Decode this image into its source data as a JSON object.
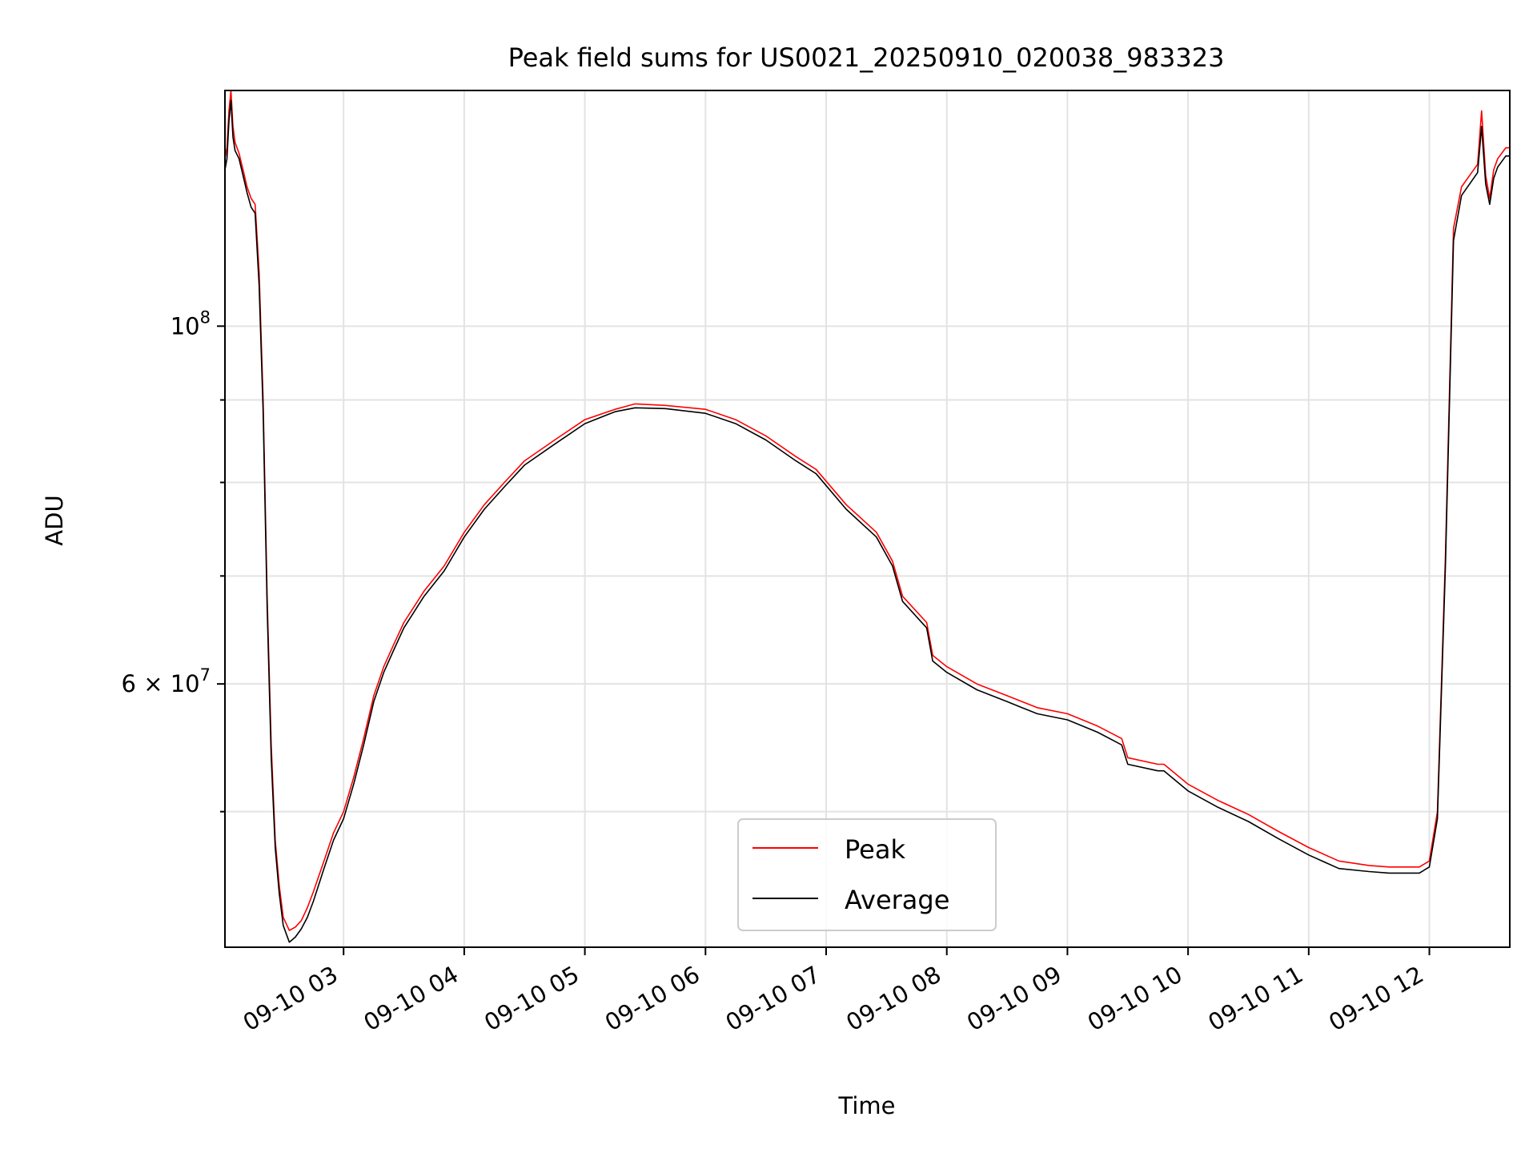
{
  "chart_data": {
    "type": "line",
    "title": "Peak field sums for US0021_20250910_020038_983323",
    "xlabel": "Time",
    "ylabel": "ADU",
    "yscale": "log",
    "grid": true,
    "legend_position": "lower center",
    "ylim": [
      41200000,
      140000000
    ],
    "xlim": [
      "2025-09-10T02:01:00",
      "2025-09-10T12:40:00"
    ],
    "x_tick_labels": [
      "09-10 03",
      "09-10 04",
      "09-10 05",
      "09-10 06",
      "09-10 07",
      "09-10 08",
      "09-10 09",
      "09-10 10",
      "09-10 11",
      "09-10 12"
    ],
    "x_tick_values": [
      "2025-09-10T03:00:00",
      "2025-09-10T04:00:00",
      "2025-09-10T05:00:00",
      "2025-09-10T06:00:00",
      "2025-09-10T07:00:00",
      "2025-09-10T08:00:00",
      "2025-09-10T09:00:00",
      "2025-09-10T10:00:00",
      "2025-09-10T11:00:00",
      "2025-09-10T12:00:00"
    ],
    "y_tick_labels": [
      {
        "mantissa": "",
        "base": "10",
        "exp": "8",
        "value": 100000000
      },
      {
        "mantissa": "6 × ",
        "base": "10",
        "exp": "7",
        "value": 60000000
      }
    ],
    "y_minor_ticks": [
      50000000,
      70000000,
      80000000,
      90000000
    ],
    "series": [
      {
        "name": "Peak",
        "color": "#ff0000",
        "x": [
          "2025-09-10T02:01:00",
          "2025-09-10T02:02:00",
          "2025-09-10T02:03:00",
          "2025-09-10T02:04:00",
          "2025-09-10T02:05:00",
          "2025-09-10T02:06:00",
          "2025-09-10T02:08:00",
          "2025-09-10T02:10:00",
          "2025-09-10T02:12:00",
          "2025-09-10T02:14:00",
          "2025-09-10T02:16:00",
          "2025-09-10T02:18:00",
          "2025-09-10T02:20:00",
          "2025-09-10T02:22:00",
          "2025-09-10T02:24:00",
          "2025-09-10T02:26:00",
          "2025-09-10T02:28:00",
          "2025-09-10T02:30:00",
          "2025-09-10T02:33:00",
          "2025-09-10T02:36:00",
          "2025-09-10T02:39:00",
          "2025-09-10T02:42:00",
          "2025-09-10T02:45:00",
          "2025-09-10T02:50:00",
          "2025-09-10T02:55:00",
          "2025-09-10T03:00:00",
          "2025-09-10T03:05:00",
          "2025-09-10T03:10:00",
          "2025-09-10T03:15:00",
          "2025-09-10T03:20:00",
          "2025-09-10T03:25:00",
          "2025-09-10T03:30:00",
          "2025-09-10T03:40:00",
          "2025-09-10T03:50:00",
          "2025-09-10T04:00:00",
          "2025-09-10T04:10:00",
          "2025-09-10T04:20:00",
          "2025-09-10T04:30:00",
          "2025-09-10T04:45:00",
          "2025-09-10T05:00:00",
          "2025-09-10T05:15:00",
          "2025-09-10T05:25:00",
          "2025-09-10T05:40:00",
          "2025-09-10T06:00:00",
          "2025-09-10T06:15:00",
          "2025-09-10T06:30:00",
          "2025-09-10T06:45:00",
          "2025-09-10T06:55:00",
          "2025-09-10T07:10:00",
          "2025-09-10T07:25:00",
          "2025-09-10T07:33:00",
          "2025-09-10T07:38:00",
          "2025-09-10T07:50:00",
          "2025-09-10T07:53:00",
          "2025-09-10T08:00:00",
          "2025-09-10T08:15:00",
          "2025-09-10T08:30:00",
          "2025-09-10T08:45:00",
          "2025-09-10T09:00:00",
          "2025-09-10T09:15:00",
          "2025-09-10T09:27:00",
          "2025-09-10T09:30:00",
          "2025-09-10T09:45:00",
          "2025-09-10T09:48:00",
          "2025-09-10T10:00:00",
          "2025-09-10T10:15:00",
          "2025-09-10T10:30:00",
          "2025-09-10T10:45:00",
          "2025-09-10T11:00:00",
          "2025-09-10T11:15:00",
          "2025-09-10T11:30:00",
          "2025-09-10T11:40:00",
          "2025-09-10T11:55:00",
          "2025-09-10T12:00:00",
          "2025-09-10T12:04:00",
          "2025-09-10T12:08:00",
          "2025-09-10T12:12:00",
          "2025-09-10T12:16:00",
          "2025-09-10T12:20:00",
          "2025-09-10T12:24:00",
          "2025-09-10T12:26:00",
          "2025-09-10T12:28:00",
          "2025-09-10T12:30:00",
          "2025-09-10T12:32:00",
          "2025-09-10T12:34:00",
          "2025-09-10T12:36:00",
          "2025-09-10T12:38:00",
          "2025-09-10T12:40:00"
        ],
        "y": [
          127000000,
          129000000,
          136000000,
          140000000,
          133000000,
          130000000,
          128000000,
          125000000,
          122000000,
          120000000,
          119000000,
          108000000,
          90000000,
          68000000,
          55000000,
          48000000,
          45000000,
          43000000,
          42200000,
          42400000,
          42800000,
          43600000,
          44600000,
          46500000,
          48500000,
          50000000,
          52500000,
          55500000,
          59000000,
          61500000,
          63500000,
          65500000,
          68500000,
          71000000,
          74500000,
          77500000,
          80000000,
          82500000,
          85000000,
          87500000,
          88800000,
          89500000,
          89300000,
          88800000,
          87500000,
          85500000,
          83000000,
          81500000,
          77500000,
          74500000,
          71500000,
          68000000,
          65500000,
          62500000,
          61500000,
          60000000,
          59000000,
          58000000,
          57500000,
          56500000,
          55500000,
          54000000,
          53500000,
          53500000,
          52000000,
          50800000,
          49800000,
          48600000,
          47500000,
          46600000,
          46300000,
          46200000,
          46200000,
          46600000,
          50000000,
          72000000,
          115000000,
          122000000,
          124000000,
          126000000,
          136000000,
          124000000,
          120000000,
          125000000,
          127000000,
          128000000,
          129000000,
          129000000
        ]
      },
      {
        "name": "Average",
        "color": "#000000",
        "x": [
          "2025-09-10T02:01:00",
          "2025-09-10T02:02:00",
          "2025-09-10T02:03:00",
          "2025-09-10T02:04:00",
          "2025-09-10T02:05:00",
          "2025-09-10T02:06:00",
          "2025-09-10T02:08:00",
          "2025-09-10T02:10:00",
          "2025-09-10T02:12:00",
          "2025-09-10T02:14:00",
          "2025-09-10T02:16:00",
          "2025-09-10T02:18:00",
          "2025-09-10T02:20:00",
          "2025-09-10T02:22:00",
          "2025-09-10T02:24:00",
          "2025-09-10T02:26:00",
          "2025-09-10T02:28:00",
          "2025-09-10T02:30:00",
          "2025-09-10T02:33:00",
          "2025-09-10T02:36:00",
          "2025-09-10T02:39:00",
          "2025-09-10T02:42:00",
          "2025-09-10T02:45:00",
          "2025-09-10T02:50:00",
          "2025-09-10T02:55:00",
          "2025-09-10T03:00:00",
          "2025-09-10T03:05:00",
          "2025-09-10T03:10:00",
          "2025-09-10T03:15:00",
          "2025-09-10T03:20:00",
          "2025-09-10T03:25:00",
          "2025-09-10T03:30:00",
          "2025-09-10T03:40:00",
          "2025-09-10T03:50:00",
          "2025-09-10T04:00:00",
          "2025-09-10T04:10:00",
          "2025-09-10T04:20:00",
          "2025-09-10T04:30:00",
          "2025-09-10T04:45:00",
          "2025-09-10T05:00:00",
          "2025-09-10T05:15:00",
          "2025-09-10T05:25:00",
          "2025-09-10T05:40:00",
          "2025-09-10T06:00:00",
          "2025-09-10T06:15:00",
          "2025-09-10T06:30:00",
          "2025-09-10T06:45:00",
          "2025-09-10T06:55:00",
          "2025-09-10T07:10:00",
          "2025-09-10T07:25:00",
          "2025-09-10T07:33:00",
          "2025-09-10T07:38:00",
          "2025-09-10T07:50:00",
          "2025-09-10T07:53:00",
          "2025-09-10T08:00:00",
          "2025-09-10T08:15:00",
          "2025-09-10T08:30:00",
          "2025-09-10T08:45:00",
          "2025-09-10T09:00:00",
          "2025-09-10T09:15:00",
          "2025-09-10T09:27:00",
          "2025-09-10T09:30:00",
          "2025-09-10T09:45:00",
          "2025-09-10T09:48:00",
          "2025-09-10T10:00:00",
          "2025-09-10T10:15:00",
          "2025-09-10T10:30:00",
          "2025-09-10T10:45:00",
          "2025-09-10T11:00:00",
          "2025-09-10T11:15:00",
          "2025-09-10T11:30:00",
          "2025-09-10T11:40:00",
          "2025-09-10T11:55:00",
          "2025-09-10T12:00:00",
          "2025-09-10T12:04:00",
          "2025-09-10T12:08:00",
          "2025-09-10T12:12:00",
          "2025-09-10T12:16:00",
          "2025-09-10T12:20:00",
          "2025-09-10T12:24:00",
          "2025-09-10T12:26:00",
          "2025-09-10T12:28:00",
          "2025-09-10T12:30:00",
          "2025-09-10T12:32:00",
          "2025-09-10T12:34:00",
          "2025-09-10T12:36:00",
          "2025-09-10T12:38:00",
          "2025-09-10T12:40:00"
        ],
        "y": [
          125000000,
          127000000,
          134000000,
          138000000,
          131000000,
          128500000,
          127000000,
          124000000,
          121000000,
          118500000,
          117500000,
          106000000,
          88500000,
          67000000,
          54000000,
          47500000,
          44500000,
          42500000,
          41500000,
          41800000,
          42300000,
          43000000,
          44000000,
          46000000,
          48000000,
          49500000,
          52000000,
          55000000,
          58500000,
          61000000,
          63000000,
          65000000,
          68000000,
          70500000,
          74000000,
          77000000,
          79500000,
          82000000,
          84500000,
          87000000,
          88500000,
          89000000,
          88900000,
          88300000,
          87000000,
          85000000,
          82500000,
          81000000,
          77000000,
          74000000,
          71000000,
          67500000,
          65000000,
          62000000,
          61000000,
          59500000,
          58500000,
          57500000,
          57000000,
          56000000,
          55000000,
          53500000,
          53000000,
          53000000,
          51500000,
          50300000,
          49300000,
          48100000,
          47000000,
          46100000,
          45900000,
          45800000,
          45800000,
          46200000,
          49500000,
          71000000,
          113000000,
          120500000,
          122500000,
          124500000,
          133000000,
          122500000,
          119000000,
          123500000,
          125500000,
          126500000,
          127500000,
          127500000
        ]
      }
    ]
  }
}
